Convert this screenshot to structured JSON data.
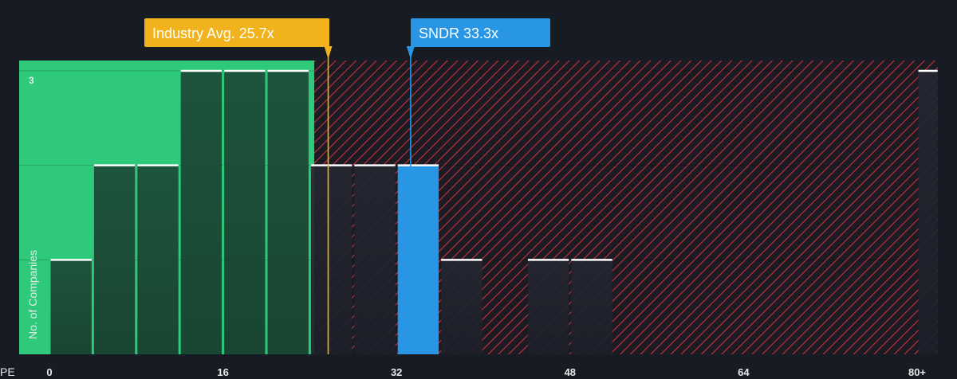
{
  "chart_data": {
    "type": "bar",
    "xlabel": "PE",
    "ylabel": "No. of Companies",
    "x_ticks": [
      "0",
      "16",
      "32",
      "48",
      "64",
      "80+"
    ],
    "x_tick_values": [
      0,
      16,
      32,
      48,
      64,
      80
    ],
    "xlim": [
      0,
      81.5
    ],
    "y_top_label": "3",
    "ylim": [
      0,
      3
    ],
    "bins": [
      {
        "start": 0,
        "end": 4,
        "count": 1
      },
      {
        "start": 4,
        "end": 8,
        "count": 2
      },
      {
        "start": 8,
        "end": 12,
        "count": 2
      },
      {
        "start": 12,
        "end": 16,
        "count": 3
      },
      {
        "start": 16,
        "end": 20,
        "count": 3
      },
      {
        "start": 20,
        "end": 24,
        "count": 3
      },
      {
        "start": 24,
        "end": 28,
        "count": 2
      },
      {
        "start": 28,
        "end": 32,
        "count": 2
      },
      {
        "start": 32,
        "end": 36,
        "count": 2,
        "highlight": true
      },
      {
        "start": 36,
        "end": 40,
        "count": 1
      },
      {
        "start": 44,
        "end": 48,
        "count": 1
      },
      {
        "start": 48,
        "end": 52,
        "count": 1
      },
      {
        "start": 80,
        "end": 82,
        "count": 3
      }
    ],
    "fair_range_end": 24.5,
    "industry_avg": {
      "label": "Industry Avg. 25.7x",
      "value": 25.7
    },
    "company": {
      "label": "SNDR 33.3x",
      "value": 33.3
    },
    "colors": {
      "background": "#161b24",
      "fair_zone": "#2ec97b",
      "bar_in_zone": "#1d4a37",
      "bar_out_zone": "#1f2430",
      "hatch": "#c3343f",
      "bar_cap": "#ffffff",
      "industry": "#f0b21d",
      "company": "#2896e4"
    }
  }
}
